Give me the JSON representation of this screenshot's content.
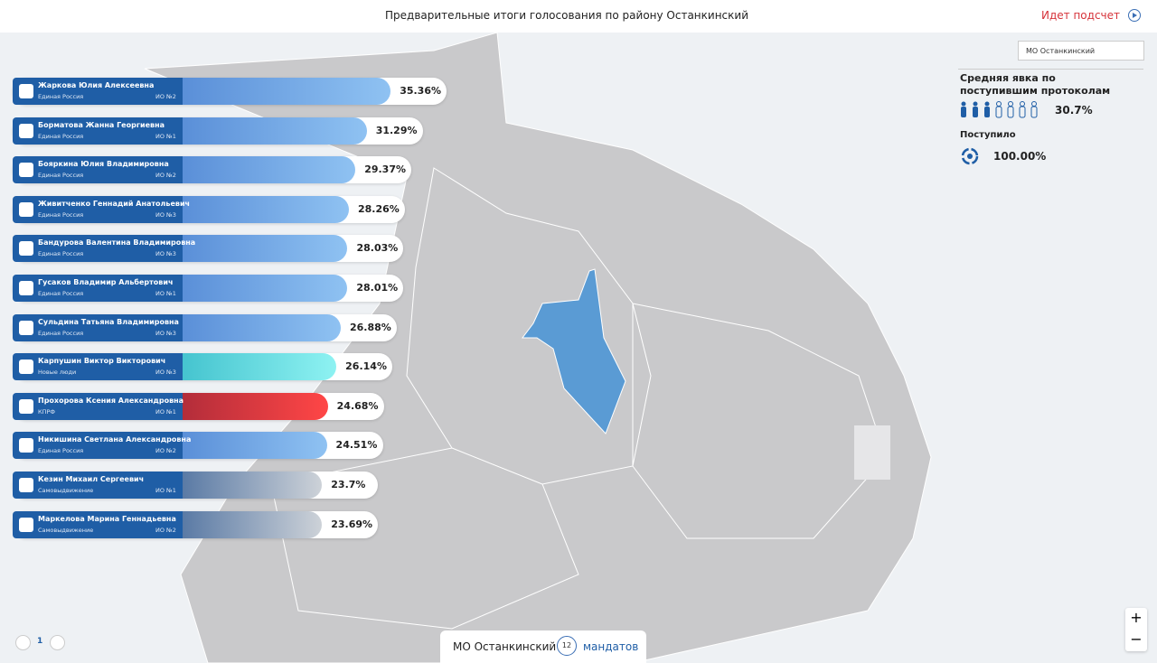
{
  "header": {
    "title": "Предварительные итоги голосования по району Останкинский",
    "status": "Идет подсчет"
  },
  "district_select": "МО Останкинский",
  "candidates": [
    {
      "name": "Жаркова Юлия Алексеевна",
      "party": "Единая Россия",
      "district": "ИО №2",
      "percent": 35.36,
      "percent_label": "35.36%",
      "colors": [
        "#5a8fd8",
        "#8fc2f2"
      ]
    },
    {
      "name": "Борматова Жанна Георгиевна",
      "party": "Единая Россия",
      "district": "ИО №1",
      "percent": 31.29,
      "percent_label": "31.29%",
      "colors": [
        "#5a8fd8",
        "#8fc2f2"
      ]
    },
    {
      "name": "Бояркина Юлия Владимировна",
      "party": "Единая Россия",
      "district": "ИО №2",
      "percent": 29.37,
      "percent_label": "29.37%",
      "colors": [
        "#5a8fd8",
        "#8fc2f2"
      ]
    },
    {
      "name": "Живитченко Геннадий Анатольевич",
      "party": "Единая Россия",
      "district": "ИО №3",
      "percent": 28.26,
      "percent_label": "28.26%",
      "colors": [
        "#5a8fd8",
        "#8fc2f2"
      ]
    },
    {
      "name": "Бандурова Валентина Владимировна",
      "party": "Единая Россия",
      "district": "ИО №3",
      "percent": 28.03,
      "percent_label": "28.03%",
      "colors": [
        "#5a8fd8",
        "#8fc2f2"
      ]
    },
    {
      "name": "Гусаков Владимир Альбертович",
      "party": "Единая Россия",
      "district": "ИО №1",
      "percent": 28.01,
      "percent_label": "28.01%",
      "colors": [
        "#5a8fd8",
        "#8fc2f2"
      ]
    },
    {
      "name": "Сульдина Татьяна Владимировна",
      "party": "Единая Россия",
      "district": "ИО №3",
      "percent": 26.88,
      "percent_label": "26.88%",
      "colors": [
        "#5a8fd8",
        "#8fc2f2"
      ]
    },
    {
      "name": "Карпушин Виктор Викторович",
      "party": "Новые люди",
      "district": "ИО №3",
      "percent": 26.14,
      "percent_label": "26.14%",
      "colors": [
        "#45c4cf",
        "#8ef2f2"
      ]
    },
    {
      "name": "Прохорова Ксения Александровна",
      "party": "КПРФ",
      "district": "ИО №1",
      "percent": 24.68,
      "percent_label": "24.68%",
      "colors": [
        "#b32d3a",
        "#ff4646"
      ]
    },
    {
      "name": "Никишина Светлана Александровна",
      "party": "Единая Россия",
      "district": "ИО №2",
      "percent": 24.51,
      "percent_label": "24.51%",
      "colors": [
        "#5a8fd8",
        "#8fc2f2"
      ]
    },
    {
      "name": "Кезин Михаил Сергеевич",
      "party": "Самовыдвижение",
      "district": "ИО №1",
      "percent": 23.7,
      "percent_label": "23.7%",
      "colors": [
        "#5a7aa5",
        "#cdd2d8"
      ]
    },
    {
      "name": "Маркелова Марина Геннадьевна",
      "party": "Самовыдвижение",
      "district": "ИО №2",
      "percent": 23.69,
      "percent_label": "23.69%",
      "colors": [
        "#5a7aa5",
        "#cdd2d8"
      ]
    }
  ],
  "turnout": {
    "label": "Средняя явка по поступившим протоколам",
    "value": "30.7%"
  },
  "received": {
    "label": "Поступило",
    "value": "100.00%"
  },
  "footer": {
    "district": "МО Останкинский",
    "mandates": "12",
    "mandates_label": "мандатов",
    "page": "1"
  },
  "zoom": {
    "in": "+",
    "out": "−"
  }
}
